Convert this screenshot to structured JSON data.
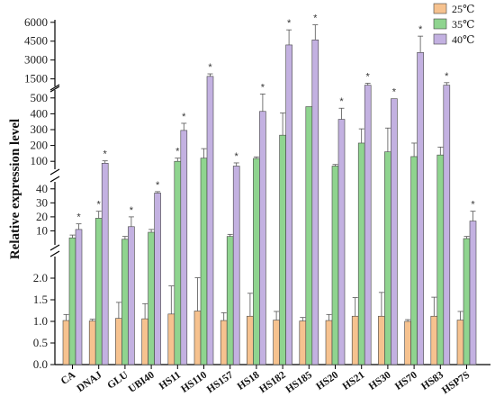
{
  "chart_data": {
    "type": "bar",
    "ylabel": "Relative expression level",
    "categories": [
      "CA",
      "DNAJ",
      "GLU",
      "UBI40",
      "HS11",
      "HS110",
      "HS157",
      "HS18",
      "HS182",
      "HS185",
      "HS20",
      "HS21",
      "HS30",
      "HS70",
      "HS83",
      "HSP7S"
    ],
    "series": [
      {
        "name": "25℃",
        "color": "#f6c28f",
        "values": [
          1.02,
          1.01,
          1.07,
          1.06,
          1.17,
          1.24,
          1.02,
          1.12,
          1.03,
          1.01,
          1.02,
          1.12,
          1.12,
          1.0,
          1.12,
          1.03
        ],
        "errors": [
          0.14,
          0.04,
          0.37,
          0.35,
          0.65,
          0.77,
          0.18,
          0.53,
          0.2,
          0.08,
          0.14,
          0.43,
          0.55,
          0.04,
          0.44,
          0.2
        ]
      },
      {
        "name": "35℃",
        "color": "#8fd48f",
        "values": [
          5,
          19,
          4,
          9,
          100,
          120,
          6,
          118,
          265,
          445,
          70,
          215,
          160,
          130,
          140,
          4.5
        ],
        "errors": [
          2,
          5,
          2,
          2,
          20,
          60,
          1.5,
          10,
          140,
          0,
          10,
          90,
          150,
          85,
          50,
          1.5
        ]
      },
      {
        "name": "40℃",
        "color": "#c3b1e1",
        "values": [
          11,
          88,
          13,
          37,
          295,
          1700,
          70,
          415,
          4200,
          4600,
          365,
          1000,
          495,
          3600,
          1000,
          17
        ],
        "errors": [
          4,
          15,
          7,
          1,
          45,
          200,
          20,
          110,
          1200,
          1200,
          70,
          150,
          0,
          1300,
          200,
          7
        ]
      }
    ],
    "significant": {
      "35℃": [
        false,
        true,
        false,
        false,
        true,
        false,
        false,
        false,
        false,
        false,
        false,
        false,
        false,
        false,
        false,
        false
      ],
      "40℃": [
        true,
        true,
        true,
        true,
        true,
        true,
        true,
        true,
        true,
        true,
        true,
        true,
        true,
        true,
        true,
        true
      ]
    },
    "significance_marker": "*",
    "y_axis_segments": [
      {
        "range": [
          0,
          2.5
        ],
        "ticks": [
          "0.0",
          "0.5",
          "1.0",
          "1.5",
          "2.0"
        ]
      },
      {
        "range": [
          0,
          45
        ],
        "ticks": [
          "10",
          "20",
          "30",
          "40"
        ]
      },
      {
        "range": [
          50,
          550
        ],
        "ticks": [
          "100",
          "200",
          "300",
          "400",
          "500"
        ]
      },
      {
        "range": [
          900,
          6200
        ],
        "ticks": [
          "1500",
          "3000",
          "4500",
          "6000"
        ]
      }
    ],
    "legend_position": "top-right"
  }
}
